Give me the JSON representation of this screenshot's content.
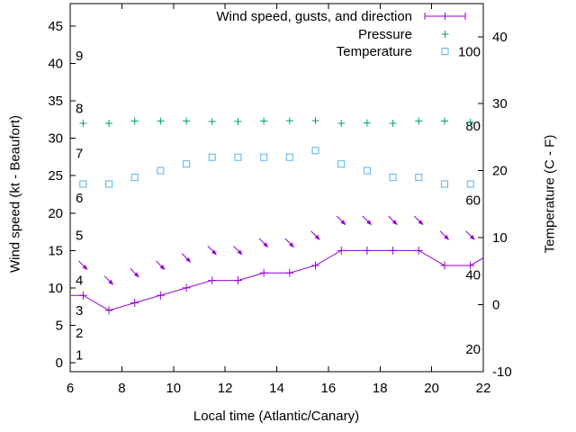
{
  "chart_data": {
    "type": "line",
    "title": "",
    "xlabel": "Local time (Atlantic/Canary)",
    "ylabel": "Wind speed (kt - Beaufort)",
    "y2label": "Temperature (C - F)",
    "background": "#ffffff",
    "grid": false,
    "legend_position": "top-right-inside",
    "x_range": [
      6,
      22
    ],
    "y_range_kt": [
      -1.2,
      48
    ],
    "y2_range_c": [
      -10,
      45
    ],
    "x_ticks": [
      6,
      8,
      10,
      12,
      14,
      16,
      18,
      20,
      22
    ],
    "y_ticks": [
      0,
      5,
      10,
      15,
      20,
      25,
      30,
      35,
      40,
      45
    ],
    "y2_ticks": [
      -10,
      0,
      10,
      20,
      30,
      40
    ],
    "beaufort_labels": [
      {
        "label": "1",
        "kt": 1
      },
      {
        "label": "2",
        "kt": 4
      },
      {
        "label": "3",
        "kt": 7
      },
      {
        "label": "4",
        "kt": 11
      },
      {
        "label": "5",
        "kt": 17
      },
      {
        "label": "6",
        "kt": 22
      },
      {
        "label": "7",
        "kt": 28
      },
      {
        "label": "8",
        "kt": 34
      },
      {
        "label": "9",
        "kt": 41
      }
    ],
    "fahrenheit_labels": [
      {
        "label": "20",
        "f": 20
      },
      {
        "label": "40",
        "f": 40
      },
      {
        "label": "60",
        "f": 60
      },
      {
        "label": "80",
        "f": 80
      },
      {
        "label": "100",
        "f": 100
      }
    ],
    "x": [
      6.5,
      7.5,
      8.5,
      9.5,
      10.5,
      11.5,
      12.5,
      13.5,
      14.5,
      15.5,
      16.5,
      17.5,
      18.5,
      19.5,
      20.5,
      21.5
    ],
    "series": [
      {
        "name": "Wind speed, gusts, and direction",
        "color": "#9400d3",
        "marker": "plus-with-line",
        "wind_kt": [
          9,
          7,
          8,
          9,
          10,
          11,
          11,
          12,
          12,
          13,
          15,
          15,
          15,
          15,
          13,
          13
        ],
        "gust_kt": [
          13,
          11,
          12,
          13,
          14,
          15,
          15,
          16,
          16,
          17,
          19,
          19,
          19,
          19,
          17,
          17
        ],
        "direction": "arrows point down-right (wind from NW)",
        "edge_points": [
          {
            "x": 6,
            "kt": 9
          },
          {
            "x": 22,
            "kt": 14
          }
        ]
      },
      {
        "name": "Pressure",
        "color": "#009e73",
        "marker": "plus",
        "y_left_scale": [
          32.0,
          32.0,
          32.3,
          32.3,
          32.3,
          32.25,
          32.25,
          32.3,
          32.35,
          32.35,
          32.0,
          32.05,
          32.0,
          32.3,
          32.3,
          32.15
        ]
      },
      {
        "name": "Temperature",
        "color": "#56b4e9",
        "marker": "open-square",
        "celsius": [
          18,
          18,
          19,
          20,
          21,
          22,
          22,
          22,
          22,
          23,
          21,
          20,
          19,
          19,
          18,
          18
        ]
      }
    ]
  }
}
